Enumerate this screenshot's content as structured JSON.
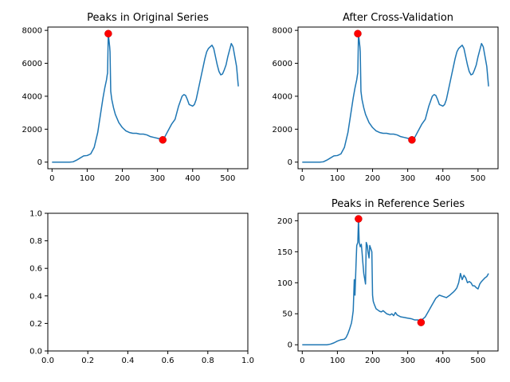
{
  "figure": {
    "panels": [
      {
        "id": "original",
        "title": "Peaks in Original Series",
        "xlim": [
          -12,
          557
        ],
        "ylim": [
          -400,
          8200
        ],
        "xticks": [
          0,
          100,
          200,
          300,
          400,
          500
        ],
        "yticks": [
          0,
          2000,
          4000,
          6000,
          8000
        ]
      },
      {
        "id": "cross-validation",
        "title": "After Cross-Validation",
        "xlim": [
          -12,
          557
        ],
        "ylim": [
          -400,
          8200
        ],
        "xticks": [
          0,
          100,
          200,
          300,
          400,
          500
        ],
        "yticks": [
          0,
          2000,
          4000,
          6000,
          8000
        ]
      },
      {
        "id": "empty",
        "title": "",
        "xlim": [
          0,
          1
        ],
        "ylim": [
          0,
          1
        ],
        "xticks": [
          0.0,
          0.2,
          0.4,
          0.6,
          0.8,
          1.0
        ],
        "yticks": [
          0.0,
          0.2,
          0.4,
          0.6,
          0.8,
          1.0
        ],
        "tick_labels_x": [
          "0.0",
          "0.2",
          "0.4",
          "0.6",
          "0.8",
          "1.0"
        ],
        "tick_labels_y": [
          "0.0",
          "0.2",
          "0.4",
          "0.6",
          "0.8",
          "1.0"
        ]
      },
      {
        "id": "reference",
        "title": "Peaks in Reference Series",
        "xlim": [
          -12,
          557
        ],
        "ylim": [
          -10,
          212
        ],
        "xticks": [
          0,
          100,
          200,
          300,
          400,
          500
        ],
        "yticks": [
          0,
          50,
          100,
          150,
          200
        ]
      }
    ]
  },
  "chart_data": [
    {
      "type": "line",
      "title": "Peaks in Original Series",
      "xlabel": "",
      "ylabel": "",
      "grid": false,
      "series": [
        {
          "x": [
            0,
            50,
            60,
            70,
            80,
            90,
            100,
            110,
            120,
            130,
            140,
            145,
            150,
            155,
            157,
            158,
            160,
            162,
            164,
            165,
            167,
            170,
            175,
            180,
            190,
            200,
            210,
            220,
            230,
            240,
            250,
            260,
            270,
            280,
            290,
            300,
            310,
            315,
            320,
            330,
            340,
            350,
            360,
            370,
            375,
            380,
            385,
            390,
            395,
            400,
            405,
            410,
            415,
            420,
            425,
            430,
            435,
            440,
            445,
            450,
            455,
            460,
            465,
            470,
            475,
            480,
            485,
            490,
            495,
            500,
            505,
            510,
            515,
            520,
            525,
            530
          ],
          "y": [
            0,
            0,
            20,
            120,
            250,
            380,
            400,
            500,
            900,
            1800,
            3200,
            3900,
            4500,
            5000,
            5300,
            5400,
            7800,
            7400,
            7000,
            6700,
            4300,
            3800,
            3300,
            2900,
            2400,
            2100,
            1900,
            1800,
            1750,
            1750,
            1700,
            1700,
            1650,
            1550,
            1500,
            1450,
            1400,
            1350,
            1500,
            1900,
            2300,
            2600,
            3400,
            4000,
            4100,
            4050,
            3800,
            3500,
            3450,
            3400,
            3500,
            3800,
            4300,
            4800,
            5300,
            5800,
            6300,
            6700,
            6900,
            7000,
            7100,
            6900,
            6400,
            5900,
            5500,
            5300,
            5350,
            5600,
            5900,
            6400,
            6800,
            7200,
            7000,
            6400,
            5800,
            4600
          ]
        }
      ],
      "peaks": [
        {
          "x": 160,
          "y": 7800
        },
        {
          "x": 315,
          "y": 1350
        }
      ]
    },
    {
      "type": "line",
      "title": "After Cross-Validation",
      "xlabel": "",
      "ylabel": "",
      "grid": false,
      "series": [
        {
          "x": [
            0,
            50,
            60,
            70,
            80,
            90,
            100,
            110,
            120,
            130,
            140,
            145,
            150,
            155,
            157,
            158,
            160,
            162,
            164,
            165,
            167,
            170,
            175,
            180,
            190,
            200,
            210,
            220,
            230,
            240,
            250,
            260,
            270,
            280,
            290,
            300,
            310,
            315,
            320,
            330,
            340,
            350,
            360,
            370,
            375,
            380,
            385,
            390,
            395,
            400,
            405,
            410,
            415,
            420,
            425,
            430,
            435,
            440,
            445,
            450,
            455,
            460,
            465,
            470,
            475,
            480,
            485,
            490,
            495,
            500,
            505,
            510,
            515,
            520,
            525,
            530
          ],
          "y": [
            0,
            0,
            20,
            120,
            250,
            380,
            400,
            500,
            900,
            1800,
            3200,
            3900,
            4500,
            5000,
            5300,
            5400,
            7800,
            7400,
            7000,
            6700,
            4300,
            3800,
            3300,
            2900,
            2400,
            2100,
            1900,
            1800,
            1750,
            1750,
            1700,
            1700,
            1650,
            1550,
            1500,
            1450,
            1400,
            1350,
            1500,
            1900,
            2300,
            2600,
            3400,
            4000,
            4100,
            4050,
            3800,
            3500,
            3450,
            3400,
            3500,
            3800,
            4300,
            4800,
            5300,
            5800,
            6300,
            6700,
            6900,
            7000,
            7100,
            6900,
            6400,
            5900,
            5500,
            5300,
            5350,
            5600,
            5900,
            6400,
            6800,
            7200,
            7000,
            6400,
            5800,
            4600
          ]
        }
      ],
      "peaks": [
        {
          "x": 158,
          "y": 7800
        },
        {
          "x": 312,
          "y": 1350
        }
      ]
    },
    {
      "type": "line",
      "title": "",
      "xlabel": "",
      "ylabel": "",
      "grid": false,
      "series": [],
      "peaks": []
    },
    {
      "type": "line",
      "title": "Peaks in Reference Series",
      "xlabel": "",
      "ylabel": "",
      "grid": false,
      "series": [
        {
          "x": [
            0,
            40,
            70,
            80,
            90,
            100,
            110,
            120,
            125,
            130,
            135,
            140,
            142,
            145,
            148,
            150,
            153,
            155,
            158,
            160,
            162,
            165,
            168,
            170,
            172,
            175,
            178,
            180,
            182,
            185,
            187,
            190,
            192,
            195,
            198,
            200,
            202,
            205,
            210,
            215,
            220,
            225,
            230,
            240,
            250,
            255,
            260,
            265,
            270,
            280,
            290,
            300,
            310,
            320,
            330,
            335,
            340,
            350,
            360,
            370,
            380,
            390,
            400,
            410,
            420,
            430,
            435,
            440,
            445,
            450,
            455,
            460,
            465,
            470,
            475,
            480,
            485,
            490,
            495,
            500,
            505,
            510,
            515,
            520,
            525,
            530
          ],
          "y": [
            0,
            0,
            0,
            1,
            3,
            6,
            8,
            9,
            12,
            18,
            26,
            35,
            42,
            55,
            105,
            80,
            130,
            160,
            165,
            203,
            165,
            158,
            162,
            150,
            135,
            115,
            105,
            98,
            165,
            160,
            150,
            140,
            160,
            155,
            150,
            80,
            70,
            65,
            58,
            56,
            54,
            53,
            55,
            50,
            48,
            50,
            47,
            52,
            48,
            45,
            44,
            43,
            42,
            40,
            40,
            36,
            40,
            45,
            55,
            65,
            75,
            80,
            78,
            76,
            80,
            85,
            88,
            92,
            100,
            115,
            105,
            112,
            108,
            100,
            102,
            100,
            95,
            95,
            92,
            90,
            98,
            102,
            105,
            108,
            110,
            115
          ]
        }
      ],
      "peaks": [
        {
          "x": 160,
          "y": 203
        },
        {
          "x": 338,
          "y": 36
        }
      ]
    }
  ]
}
